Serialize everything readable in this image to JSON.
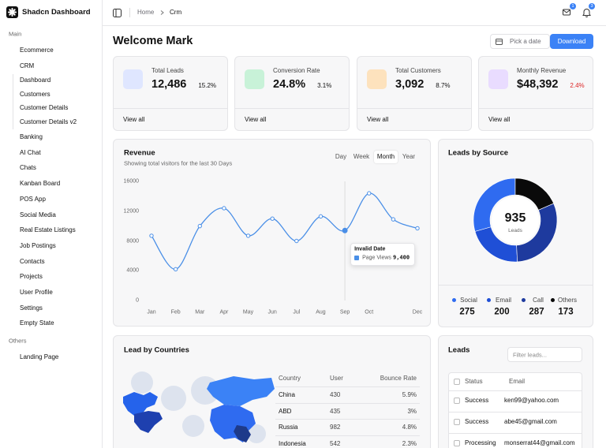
{
  "sidebar": {
    "brand": "Shadcn Dashboard",
    "sections": [
      {
        "title": "Main",
        "items": [
          {
            "label": "Ecommerce",
            "expandable": true
          },
          {
            "label": "CRM",
            "expandable": true,
            "expanded": true,
            "children": [
              "Dashboard",
              "Customers",
              "Customer Details",
              "Customer Details v2"
            ]
          },
          {
            "label": "Banking"
          },
          {
            "label": "AI Chat"
          },
          {
            "label": "Chats"
          },
          {
            "label": "Kanban Board"
          },
          {
            "label": "POS App"
          },
          {
            "label": "Social Media"
          },
          {
            "label": "Real Estate Listings"
          },
          {
            "label": "Job Postings"
          },
          {
            "label": "Contacts"
          },
          {
            "label": "Projects"
          },
          {
            "label": "User Profile"
          },
          {
            "label": "Settings"
          },
          {
            "label": "Empty State",
            "expandable": true
          }
        ]
      },
      {
        "title": "Others",
        "items": [
          {
            "label": "Landing Page"
          }
        ]
      }
    ]
  },
  "header": {
    "breadcrumb": [
      "Home",
      "Crm"
    ],
    "mail_badge": "1",
    "bell_badge": "3"
  },
  "page": {
    "title": "Welcome Mark",
    "date_placeholder": "Pick a date",
    "download": "Download"
  },
  "stats": [
    {
      "label": "Total Leads",
      "value": "12,486",
      "change": "15.2%",
      "trend": "up",
      "link": "View all"
    },
    {
      "label": "Conversion Rate",
      "value": "24.8%",
      "change": "3.1%",
      "trend": "up",
      "link": "View all"
    },
    {
      "label": "Total Customers",
      "value": "3,092",
      "change": "8.7%",
      "trend": "up",
      "link": "View all"
    },
    {
      "label": "Monthly Revenue",
      "value": "$48,392",
      "change": "2.4%",
      "trend": "down",
      "link": "View all"
    }
  ],
  "chart_data": [
    {
      "type": "line",
      "title": "Revenue",
      "subtitle": "Showing total visitors for the last 30 Days",
      "ranges": [
        "Day",
        "Week",
        "Month",
        "Year"
      ],
      "active_range": 2,
      "categories": [
        "Jan",
        "Feb",
        "Mar",
        "Apr",
        "May",
        "Jun",
        "Jul",
        "Aug",
        "Sep",
        "Oct",
        null,
        "Dec"
      ],
      "series": [
        {
          "name": "Page Views",
          "color": "#4a8fe7",
          "values": [
            8700,
            4200,
            10000,
            12400,
            8700,
            11000,
            8000,
            11300,
            9400,
            14400,
            10900,
            9700
          ]
        }
      ],
      "ylim": [
        0,
        16000
      ],
      "yticks": [
        0,
        4000,
        8000,
        12000,
        16000
      ],
      "grid": false,
      "tooltip": {
        "index": 8,
        "title": "Invalid Date",
        "value_label": "9,400"
      }
    },
    {
      "type": "pie",
      "title": "Leads by Source",
      "total": 935,
      "center_label": "Leads",
      "categories": [
        "Social",
        "Email",
        "Call",
        "Others"
      ],
      "values": [
        275,
        200,
        287,
        173
      ],
      "colors": [
        "#2f6bf0",
        "#1f4fd6",
        "#1e3a9e",
        "#0a0a0a"
      ]
    }
  ],
  "countries": {
    "title": "Lead by Countries",
    "columns": [
      "Country",
      "User",
      "Bounce Rate"
    ],
    "rows": [
      [
        "China",
        "430",
        "5.9%"
      ],
      [
        "ABD",
        "435",
        "3%"
      ],
      [
        "Russia",
        "982",
        "4.8%"
      ],
      [
        "Indonesia",
        "542",
        "2.3%"
      ]
    ]
  },
  "leads": {
    "title": "Leads",
    "filter_placeholder": "Filter leads...",
    "columns": [
      "Status",
      "Email"
    ],
    "rows": [
      [
        "Success",
        "ken99@yahoo.com"
      ],
      [
        "Success",
        "abe45@gmail.com"
      ],
      [
        "Processing",
        "monserrat44@gmail.com"
      ]
    ]
  }
}
